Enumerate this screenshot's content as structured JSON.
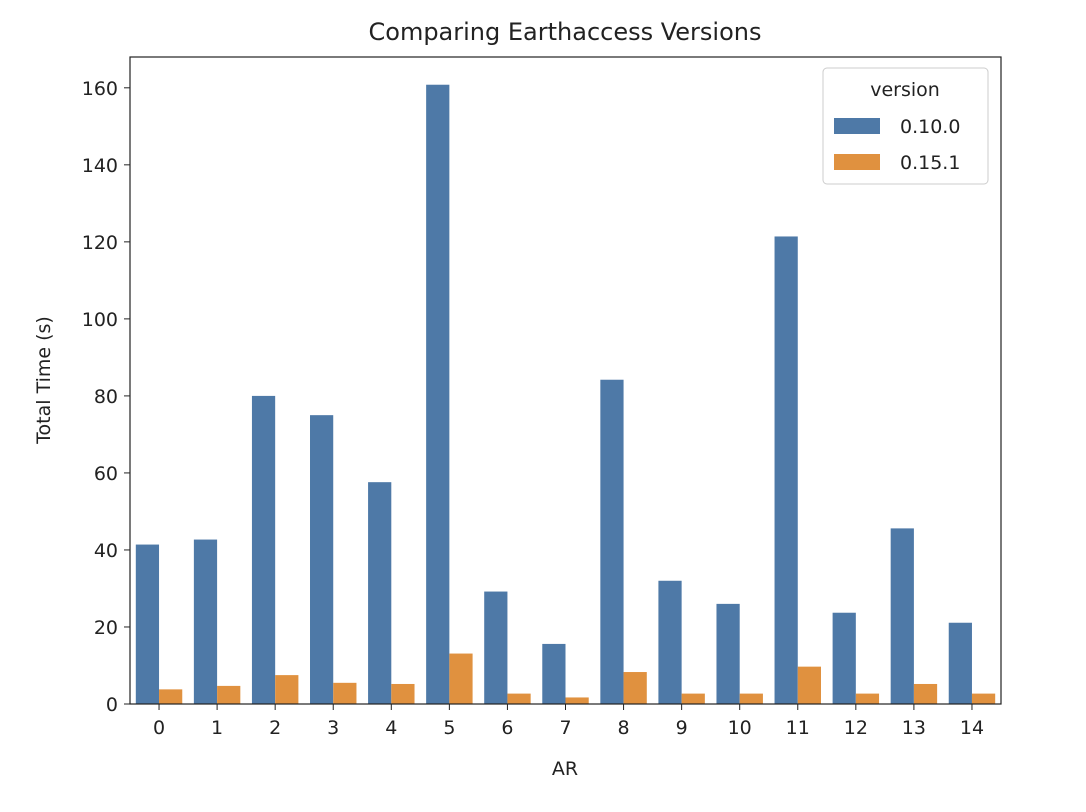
{
  "chart_data": {
    "type": "bar",
    "title": "Comparing Earthaccess Versions",
    "xlabel": "AR",
    "ylabel": "Total Time (s)",
    "categories": [
      "0",
      "1",
      "2",
      "3",
      "4",
      "5",
      "6",
      "7",
      "8",
      "9",
      "10",
      "11",
      "12",
      "13",
      "14"
    ],
    "ylim": [
      0,
      168
    ],
    "yticks": [
      0,
      20,
      40,
      60,
      80,
      100,
      120,
      140,
      160
    ],
    "grid": false,
    "legend": {
      "title": "version",
      "placement": "top-right"
    },
    "series": [
      {
        "name": "0.10.0",
        "color": "#4e79a7",
        "values": [
          41.4,
          42.7,
          80.0,
          75.0,
          57.6,
          160.8,
          29.2,
          15.6,
          84.2,
          32.0,
          26.0,
          121.4,
          23.7,
          45.6,
          21.1
        ]
      },
      {
        "name": "0.15.1",
        "color": "#e0913f",
        "values": [
          3.8,
          4.7,
          7.5,
          5.5,
          5.2,
          13.1,
          2.7,
          1.7,
          8.3,
          2.7,
          2.7,
          9.7,
          2.7,
          5.2,
          2.7
        ]
      }
    ]
  }
}
